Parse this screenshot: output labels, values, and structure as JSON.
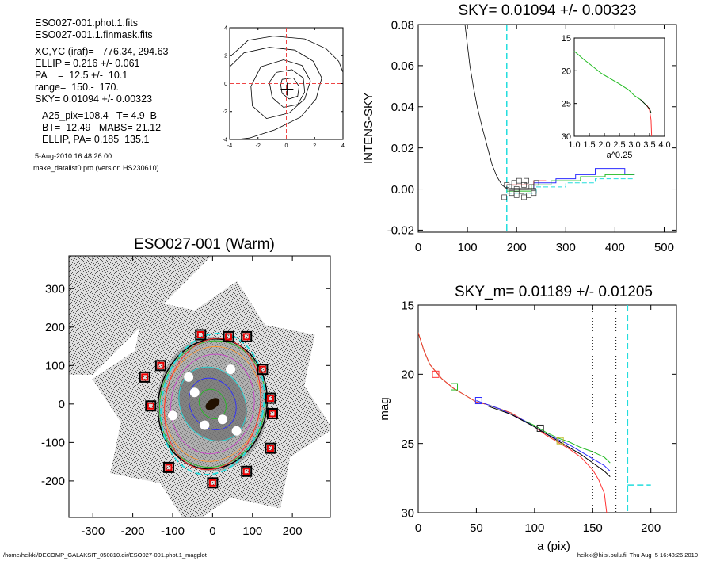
{
  "info": {
    "lines": [
      "ESO027-001.phot.1.fits",
      "ESO027-001.1.finmask.fits"
    ],
    "lines2": [
      "XC,YC (iraf)=   776.34, 294.63",
      "ELLIP = 0.216 +/- 0.061",
      "PA    =  12.5 +/-  10.1",
      "range=  150.-  170.",
      "SKY= 0.01094 +/- 0.00323"
    ],
    "lines3": [
      "A25_pix=108.4   T= 4.9  B",
      "BT=  12.49   MABS=-21.12",
      "ELLIP, PA= 0.185  135.1"
    ],
    "timestamp": "5-Aug-2010 16:48:26.00",
    "program": "make_datalist0.pro (version HS230610)"
  },
  "footer": {
    "left": "/home/heikki/DECOMP_GALAKSIT_050810.dir/ESO027-001.phot.1_magplot",
    "right": "heikki@hiisi.oulu.fi  Thu Aug  5 16:48:26 2010"
  },
  "chart_data": [
    {
      "type": "contour",
      "id": "centroid",
      "xlim": [
        -4,
        4
      ],
      "ylim": [
        -4,
        4
      ],
      "xticks": [
        "-4",
        "-2",
        "0",
        "2",
        "4"
      ],
      "yticks": [
        "-4",
        "-2",
        "0",
        "2",
        "4"
      ],
      "contours": [
        [
          [
            -3.9,
            2.0
          ],
          [
            -2.7,
            3.1
          ],
          [
            -0.9,
            3.4
          ],
          [
            1.3,
            3.2
          ],
          [
            2.8,
            2.5
          ],
          [
            3.7,
            1.6
          ],
          [
            4.0,
            0.8
          ]
        ],
        [
          [
            -4.0,
            1.2
          ],
          [
            -3.0,
            2.2
          ],
          [
            -1.2,
            2.6
          ],
          [
            0.6,
            2.4
          ],
          [
            1.9,
            1.6
          ],
          [
            2.5,
            0.4
          ],
          [
            2.1,
            -1.1
          ],
          [
            1.0,
            -2.4
          ],
          [
            -0.8,
            -3.3
          ],
          [
            -2.6,
            -3.9
          ],
          [
            -3.5,
            -4.0
          ]
        ],
        [
          [
            -1.8,
            1.2
          ],
          [
            -0.2,
            1.7
          ],
          [
            1.1,
            1.3
          ],
          [
            1.7,
            0.2
          ],
          [
            1.3,
            -1.1
          ],
          [
            0.2,
            -2.1
          ],
          [
            -1.4,
            -2.5
          ],
          [
            -2.4,
            -1.6
          ],
          [
            -2.5,
            -0.2
          ],
          [
            -1.8,
            1.2
          ]
        ],
        [
          [
            -0.7,
            0.8
          ],
          [
            0.4,
            1.0
          ],
          [
            1.2,
            0.4
          ],
          [
            1.3,
            -0.6
          ],
          [
            0.8,
            -1.5
          ],
          [
            -0.2,
            -1.7
          ],
          [
            -1.0,
            -1.0
          ],
          [
            -1.2,
            0.1
          ],
          [
            -0.7,
            0.8
          ]
        ],
        [
          [
            -0.3,
            0.3
          ],
          [
            0.5,
            0.4
          ],
          [
            0.9,
            -0.2
          ],
          [
            0.8,
            -0.9
          ],
          [
            0.2,
            -1.1
          ],
          [
            -0.3,
            -0.7
          ],
          [
            -0.4,
            -0.1
          ],
          [
            -0.3,
            0.3
          ]
        ]
      ],
      "center": [
        0.05,
        -0.4
      ],
      "crosshair": [
        0,
        0
      ]
    },
    {
      "type": "line",
      "id": "sky",
      "title": "SKY= 0.01094 +/- 0.00323",
      "ylabel": "INTENS-SKY",
      "xlim": [
        0,
        525
      ],
      "ylim": [
        -0.021,
        0.08
      ],
      "xticks": [
        0,
        100,
        200,
        300,
        400,
        500
      ],
      "yticks": [
        "-0.02",
        "0.00",
        "0.02",
        "0.04",
        "0.06",
        "0.08"
      ],
      "sky_marker_x": 180,
      "profile": [
        [
          95,
          0.08
        ],
        [
          100,
          0.07
        ],
        [
          105,
          0.06
        ],
        [
          112,
          0.05
        ],
        [
          120,
          0.04
        ],
        [
          130,
          0.03
        ],
        [
          140,
          0.021
        ],
        [
          150,
          0.012
        ],
        [
          160,
          0.006
        ],
        [
          170,
          0.002
        ],
        [
          178,
          0.0005
        ],
        [
          185,
          0.0
        ]
      ],
      "series": [
        {
          "color": "#2b2bff",
          "points": [
            [
              180,
              0.0
            ],
            [
              235,
              0.0
            ],
            [
              235,
              0.003
            ],
            [
              280,
              0.003
            ],
            [
              280,
              0.005
            ],
            [
              320,
              0.005
            ],
            [
              320,
              0.007
            ],
            [
              360,
              0.007
            ],
            [
              360,
              0.01
            ],
            [
              420,
              0.01
            ],
            [
              420,
              0.007
            ],
            [
              440,
              0.007
            ]
          ]
        },
        {
          "color": "#22bb22",
          "points": [
            [
              180,
              -0.001
            ],
            [
              230,
              -0.001
            ],
            [
              230,
              0.002
            ],
            [
              270,
              0.002
            ],
            [
              270,
              0.004
            ],
            [
              330,
              0.004
            ],
            [
              330,
              0.006
            ],
            [
              380,
              0.006
            ],
            [
              380,
              0.007
            ],
            [
              440,
              0.007
            ]
          ]
        },
        {
          "color": "#ff3333",
          "points": [
            [
              180,
              0.002
            ],
            [
              235,
              0.002
            ],
            [
              235,
              0.004
            ],
            [
              260,
              0.004
            ]
          ]
        },
        {
          "color": "#22dddd",
          "points": [
            [
              180,
              -0.002
            ],
            [
              240,
              -0.002
            ],
            [
              240,
              0.001
            ],
            [
              300,
              0.001
            ],
            [
              300,
              0.003
            ],
            [
              360,
              0.003
            ],
            [
              360,
              0.005
            ],
            [
              440,
              0.005
            ]
          ],
          "dashed": true
        }
      ],
      "squares": [
        [
          175,
          -0.004
        ],
        [
          180,
          0.002
        ],
        [
          185,
          0.001
        ],
        [
          190,
          -0.002
        ],
        [
          195,
          0.003
        ],
        [
          200,
          0.0
        ],
        [
          205,
          0.004
        ],
        [
          210,
          -0.001
        ],
        [
          215,
          0.002
        ],
        [
          220,
          0.004
        ],
        [
          225,
          -0.003
        ],
        [
          230,
          0.001
        ],
        [
          235,
          -0.002
        ],
        [
          240,
          0.003
        ],
        [
          200,
          -0.003
        ],
        [
          215,
          -0.004
        ]
      ],
      "inset": {
        "xlabel": "a^0.25",
        "xlim": [
          1.0,
          4.0
        ],
        "ylim": [
          15,
          30
        ],
        "xticks": [
          "1.0",
          "1.5",
          "2.0",
          "2.5",
          "3.0",
          "3.5",
          "4.0"
        ],
        "yticks": [
          "15",
          "20",
          "25",
          "30"
        ],
        "curve": [
          [
            1.0,
            17.0
          ],
          [
            1.3,
            18.2
          ],
          [
            1.6,
            19.3
          ],
          [
            1.9,
            20.4
          ],
          [
            2.2,
            21.2
          ],
          [
            2.5,
            22.0
          ],
          [
            2.8,
            22.9
          ],
          [
            3.0,
            23.8
          ],
          [
            3.2,
            24.4
          ],
          [
            3.4,
            25.3
          ],
          [
            3.5,
            25.8
          ],
          [
            3.55,
            26.4
          ]
        ],
        "red_tail": [
          [
            3.4,
            25.2
          ],
          [
            3.5,
            26.0
          ],
          [
            3.55,
            27.5
          ],
          [
            3.57,
            30.0
          ]
        ]
      }
    },
    {
      "type": "image",
      "id": "galaxy",
      "title": "ESO027-001 (Warm)",
      "xlim": [
        -360,
        295
      ],
      "ylim": [
        -295,
        385
      ],
      "xticks": [
        -300,
        -200,
        -100,
        0,
        100,
        200
      ],
      "yticks": [
        -200,
        -100,
        0,
        100,
        200,
        300
      ],
      "xticklabels": [
        "-300",
        "-200",
        "-100",
        "0",
        "100",
        "200"
      ],
      "yticklabels": [
        "-200",
        "-100",
        "0",
        "100",
        "200",
        "300"
      ],
      "ellipse_sizes": [
        40,
        70,
        100,
        130,
        150,
        165,
        170
      ],
      "squares": [
        [
          -170,
          70
        ],
        [
          -130,
          100
        ],
        [
          -30,
          180
        ],
        [
          40,
          175
        ],
        [
          85,
          175
        ],
        [
          125,
          90
        ],
        [
          145,
          15
        ],
        [
          150,
          -25
        ],
        [
          145,
          -115
        ],
        [
          85,
          -175
        ],
        [
          0,
          -205
        ],
        [
          -110,
          -165
        ],
        [
          -155,
          -5
        ]
      ]
    },
    {
      "type": "line",
      "id": "mag",
      "title": "SKY_m=  0.01189 +/- 0.01205",
      "xlabel": "a (pix)",
      "ylabel": "mag",
      "xlim": [
        0,
        222
      ],
      "ylim": [
        15,
        30
      ],
      "xticks": [
        0,
        50,
        100,
        150,
        200
      ],
      "yticks": [
        15,
        20,
        25,
        30
      ],
      "vlines_dotted": [
        150,
        170
      ],
      "vline_dashed": 180,
      "sky_segment": [
        [
          180,
          28.0
        ],
        [
          200,
          28.0
        ]
      ],
      "series": [
        {
          "color": "#22bb22",
          "points": [
            [
              0,
              17.0
            ],
            [
              5,
              18.3
            ],
            [
              10,
              19.3
            ],
            [
              20,
              20.3
            ],
            [
              30,
              21.0
            ],
            [
              40,
              21.5
            ],
            [
              50,
              22.0
            ],
            [
              60,
              22.2
            ],
            [
              70,
              22.5
            ],
            [
              80,
              22.8
            ],
            [
              90,
              23.3
            ],
            [
              100,
              23.7
            ],
            [
              110,
              24.2
            ],
            [
              120,
              24.6
            ],
            [
              130,
              24.9
            ],
            [
              140,
              25.3
            ],
            [
              150,
              25.6
            ],
            [
              160,
              26.0
            ],
            [
              165,
              26.4
            ]
          ]
        },
        {
          "color": "#ff3333",
          "points": [
            [
              0,
              17.0
            ],
            [
              5,
              18.3
            ],
            [
              10,
              19.3
            ],
            [
              20,
              20.3
            ],
            [
              30,
              21.0
            ],
            [
              40,
              21.5
            ],
            [
              50,
              22.0
            ],
            [
              60,
              22.2
            ],
            [
              70,
              22.5
            ],
            [
              80,
              22.8
            ],
            [
              90,
              23.3
            ],
            [
              100,
              23.8
            ],
            [
              110,
              24.4
            ],
            [
              120,
              24.9
            ],
            [
              130,
              25.4
            ],
            [
              140,
              26.0
            ],
            [
              150,
              26.9
            ],
            [
              155,
              27.6
            ],
            [
              160,
              28.6
            ],
            [
              162,
              30.0
            ]
          ]
        },
        {
          "color": "#2b2bff",
          "points": [
            [
              50,
              21.9
            ],
            [
              60,
              22.2
            ],
            [
              70,
              22.5
            ],
            [
              80,
              22.9
            ],
            [
              90,
              23.3
            ],
            [
              100,
              23.8
            ],
            [
              110,
              24.3
            ],
            [
              120,
              24.7
            ],
            [
              130,
              25.1
            ],
            [
              140,
              25.6
            ],
            [
              150,
              26.1
            ],
            [
              160,
              26.6
            ],
            [
              165,
              27.0
            ]
          ]
        },
        {
          "color": "#000000",
          "points": [
            [
              60,
              22.3
            ],
            [
              80,
              22.9
            ],
            [
              100,
              23.8
            ],
            [
              120,
              24.8
            ],
            [
              140,
              25.8
            ],
            [
              150,
              26.4
            ],
            [
              160,
              27.0
            ],
            [
              165,
              27.4
            ]
          ]
        }
      ],
      "squares": [
        {
          "x": 15,
          "y": 20.0,
          "color": "#ff3333"
        },
        {
          "x": 31,
          "y": 20.9,
          "color": "#22bb22"
        },
        {
          "x": 52,
          "y": 21.9,
          "color": "#2b2bff"
        },
        {
          "x": 105,
          "y": 23.9,
          "color": "#222222"
        },
        {
          "x": 122,
          "y": 24.8,
          "color": "#bbbb22"
        }
      ]
    }
  ]
}
